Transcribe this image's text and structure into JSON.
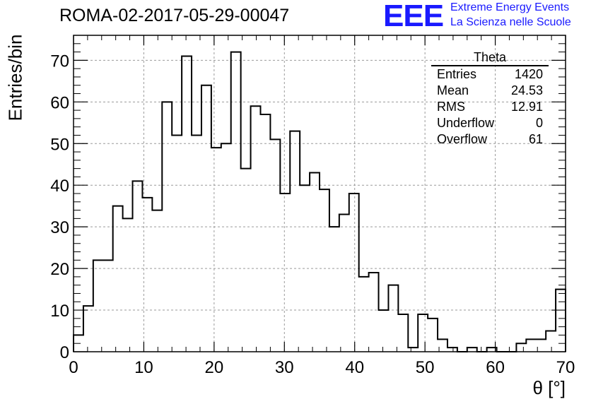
{
  "title": "ROMA-02-2017-05-29-00047",
  "logo": {
    "mark": "EEE",
    "line1": "Extreme Energy Events",
    "line2": "La Scienza nelle Scuole",
    "color": "#1a1aff"
  },
  "stats": {
    "title": "Theta",
    "rows": [
      {
        "label": "Entries",
        "value": "1420"
      },
      {
        "label": "Mean",
        "value": "24.53"
      },
      {
        "label": "RMS",
        "value": "12.91"
      },
      {
        "label": "Underflow",
        "value": "0"
      },
      {
        "label": "Overflow",
        "value": "61"
      }
    ]
  },
  "chart_data": {
    "type": "bar",
    "style": "step-histogram",
    "title": "ROMA-02-2017-05-29-00047",
    "xlabel": "θ [°]",
    "ylabel": "Entries/bin",
    "xlim": [
      0,
      70
    ],
    "ylim": [
      0,
      76
    ],
    "bin_width": 1.4,
    "grid": true,
    "xticks": [
      0,
      10,
      20,
      30,
      40,
      50,
      60,
      70
    ],
    "yticks": [
      0,
      10,
      20,
      30,
      40,
      50,
      60,
      70
    ],
    "series": [
      {
        "values": [
          4,
          11,
          22,
          22,
          35,
          32,
          41,
          37,
          34,
          60,
          52,
          71,
          52,
          64,
          49,
          50,
          72,
          44,
          59,
          57,
          51,
          38,
          53,
          40,
          43,
          39,
          30,
          33,
          38,
          18,
          19,
          10,
          16,
          9,
          1,
          9,
          8,
          3,
          1,
          0,
          1,
          0,
          1,
          0,
          0,
          2,
          3,
          3,
          5,
          15
        ]
      }
    ]
  }
}
